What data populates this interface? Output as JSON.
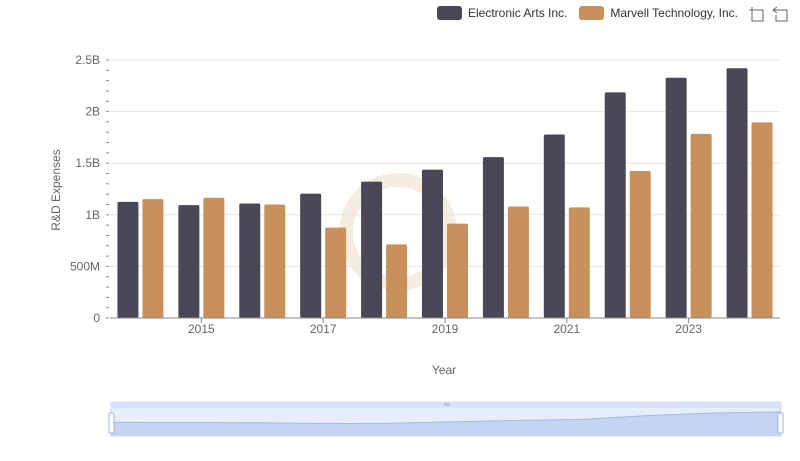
{
  "legend": {
    "series_a": "Electronic Arts Inc.",
    "series_b": "Marvell Technology, Inc."
  },
  "toolbox": {
    "zoom_icon": "zoom-crosshair-icon",
    "reset_icon": "zoom-reset-icon"
  },
  "chart_data": {
    "type": "bar",
    "xlabel": "Year",
    "ylabel": "R&D Expenses",
    "ylim": [
      0,
      2500000000
    ],
    "yticks": [
      0,
      500000000,
      1000000000,
      1500000000,
      2000000000,
      2500000000
    ],
    "ytick_labels": [
      "0",
      "500M",
      "1B",
      "1.5B",
      "2B",
      "2.5B"
    ],
    "categories": [
      "2014",
      "2015",
      "2016",
      "2017",
      "2018",
      "2019",
      "2020",
      "2021",
      "2022",
      "2023",
      "2024"
    ],
    "xtick_labels": [
      "",
      "2015",
      "",
      "2017",
      "",
      "2019",
      "",
      "2021",
      "",
      "2023",
      ""
    ],
    "series": [
      {
        "name": "Electronic Arts Inc.",
        "color": "#484856",
        "values": [
          1125000000,
          1094000000,
          1109000000,
          1205000000,
          1322000000,
          1438000000,
          1559000000,
          1778000000,
          2186000000,
          2328000000,
          2420000000
        ]
      },
      {
        "name": "Marvell Technology, Inc.",
        "color": "#c8915b",
        "values": [
          1152000000,
          1165000000,
          1100000000,
          876000000,
          714000000,
          914000000,
          1080000000,
          1072000000,
          1424000000,
          1784000000,
          1896000000
        ]
      }
    ],
    "grid": true,
    "legend_position": "top-right",
    "datazoom": {
      "start": 0,
      "end": 100
    }
  }
}
